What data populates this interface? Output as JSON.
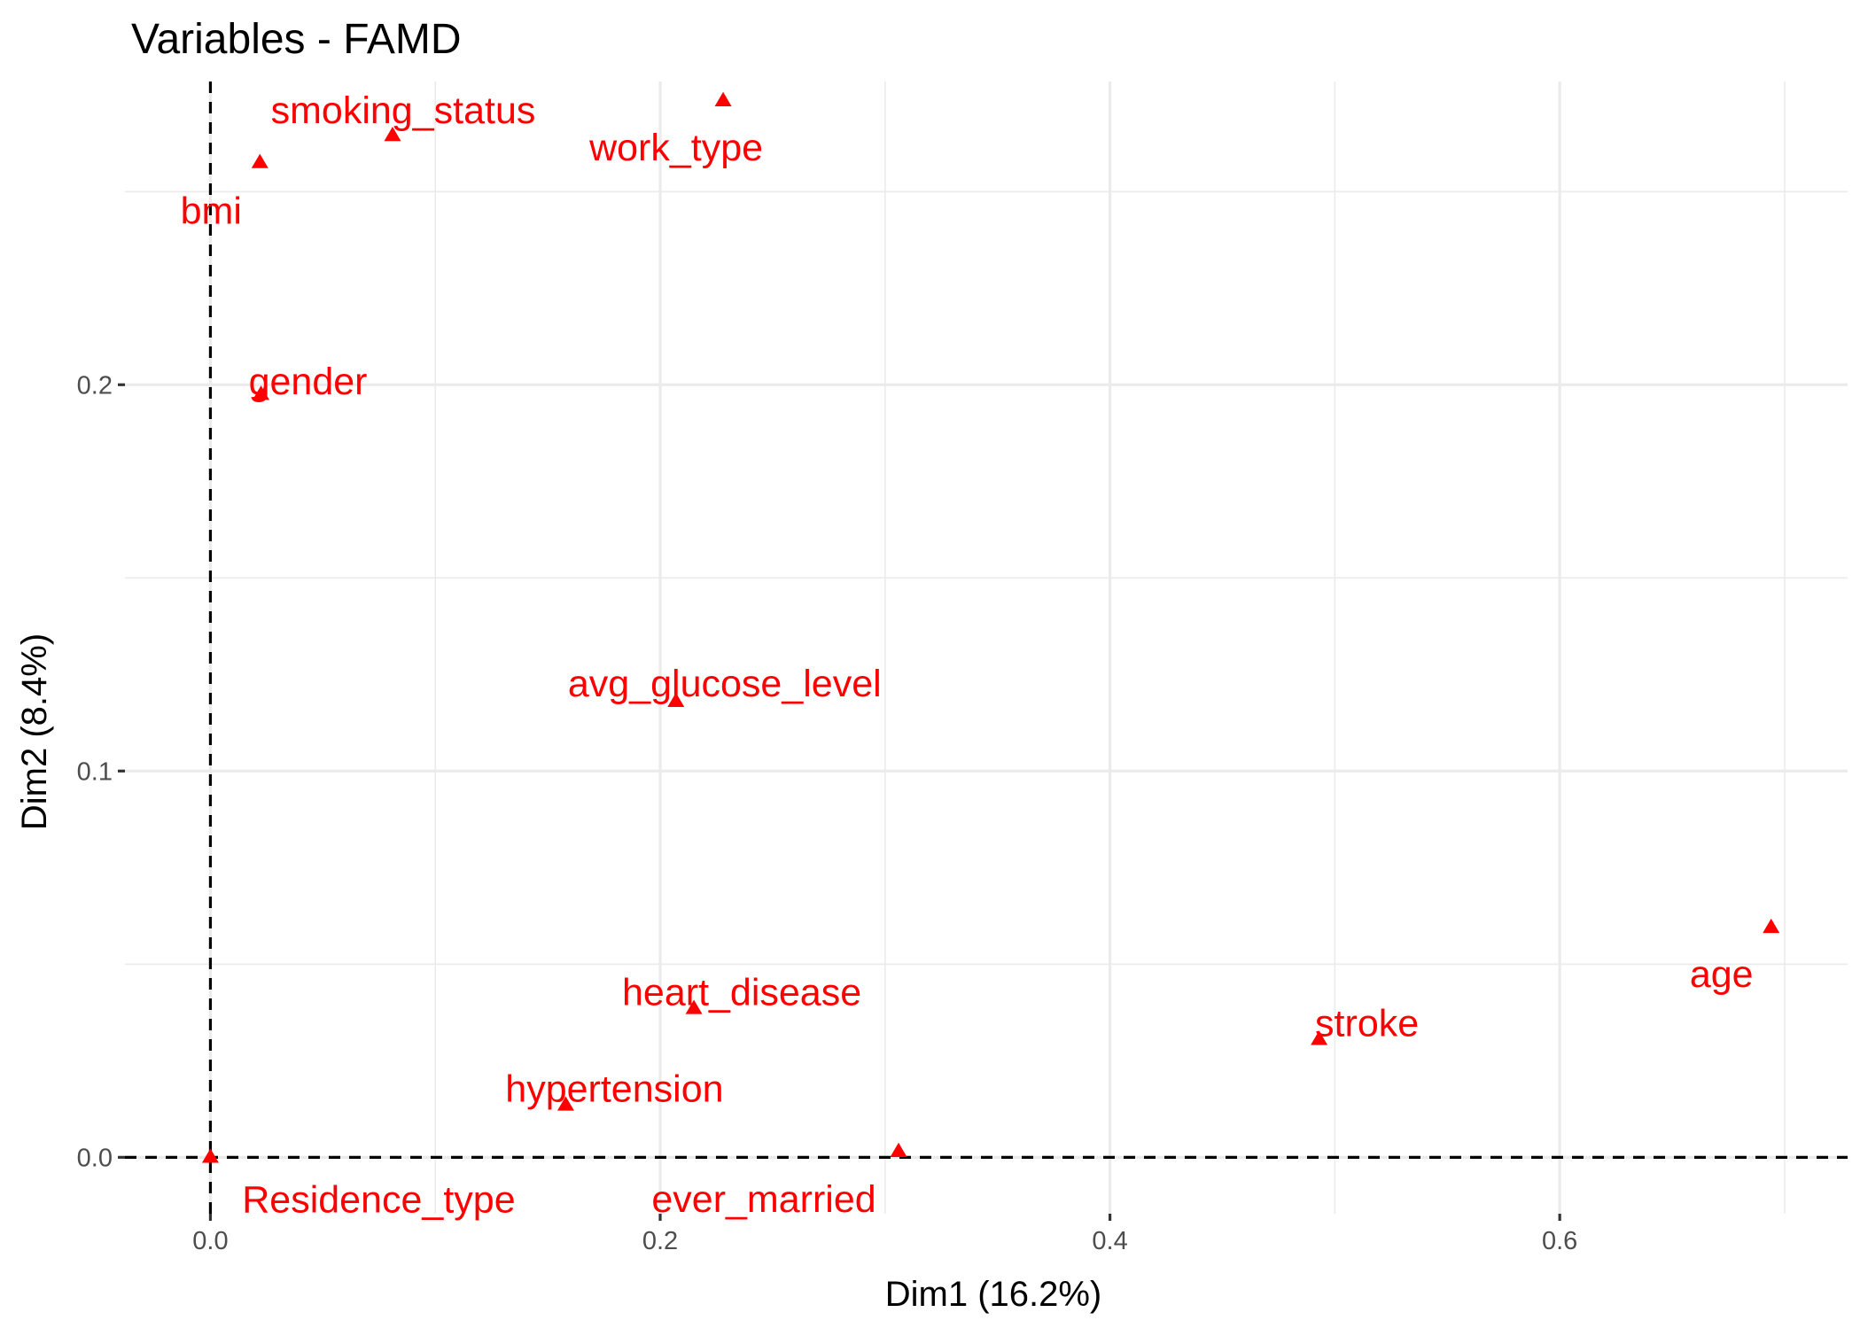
{
  "chart_data": {
    "type": "scatter",
    "title": "Variables - FAMD",
    "xlabel": "Dim1 (16.2%)",
    "ylabel": "Dim2 (8.4%)",
    "xlim": [
      -0.038,
      0.728
    ],
    "ylim": [
      -0.0146,
      0.2785
    ],
    "x_ticks": [
      0.0,
      0.2,
      0.4,
      0.6
    ],
    "x_tick_labels": [
      "0.0",
      "0.2",
      "0.4",
      "0.6"
    ],
    "y_ticks": [
      0.0,
      0.1,
      0.2
    ],
    "y_tick_labels": [
      "0.0",
      "0.1",
      "0.2"
    ],
    "x_minor_ticks": [
      0.1,
      0.3,
      0.5,
      0.7
    ],
    "y_minor_ticks": [
      0.05,
      0.15,
      0.25
    ],
    "grid": true,
    "reference_lines": {
      "x": 0,
      "y": 0,
      "style": "dashed"
    },
    "marker": "triangle",
    "color": "#ff0000",
    "points": [
      {
        "label": "smoking_status",
        "x": 0.081,
        "y": 0.2645
      },
      {
        "label": "work_type",
        "x": 0.228,
        "y": 0.2735
      },
      {
        "label": "bmi",
        "x": 0.022,
        "y": 0.2575
      },
      {
        "label": "gender",
        "x": 0.0225,
        "y": 0.1975
      },
      {
        "label": "avg_glucose_level",
        "x": 0.207,
        "y": 0.118
      },
      {
        "label": "age",
        "x": 0.694,
        "y": 0.0595
      },
      {
        "label": "heart_disease",
        "x": 0.215,
        "y": 0.0385
      },
      {
        "label": "stroke",
        "x": 0.493,
        "y": 0.0305
      },
      {
        "label": "hypertension",
        "x": 0.158,
        "y": 0.0135
      },
      {
        "label": "ever_married",
        "x": 0.306,
        "y": 0.0015
      },
      {
        "label": "Residence_type",
        "x": 0.0,
        "y": 0.0
      }
    ]
  }
}
